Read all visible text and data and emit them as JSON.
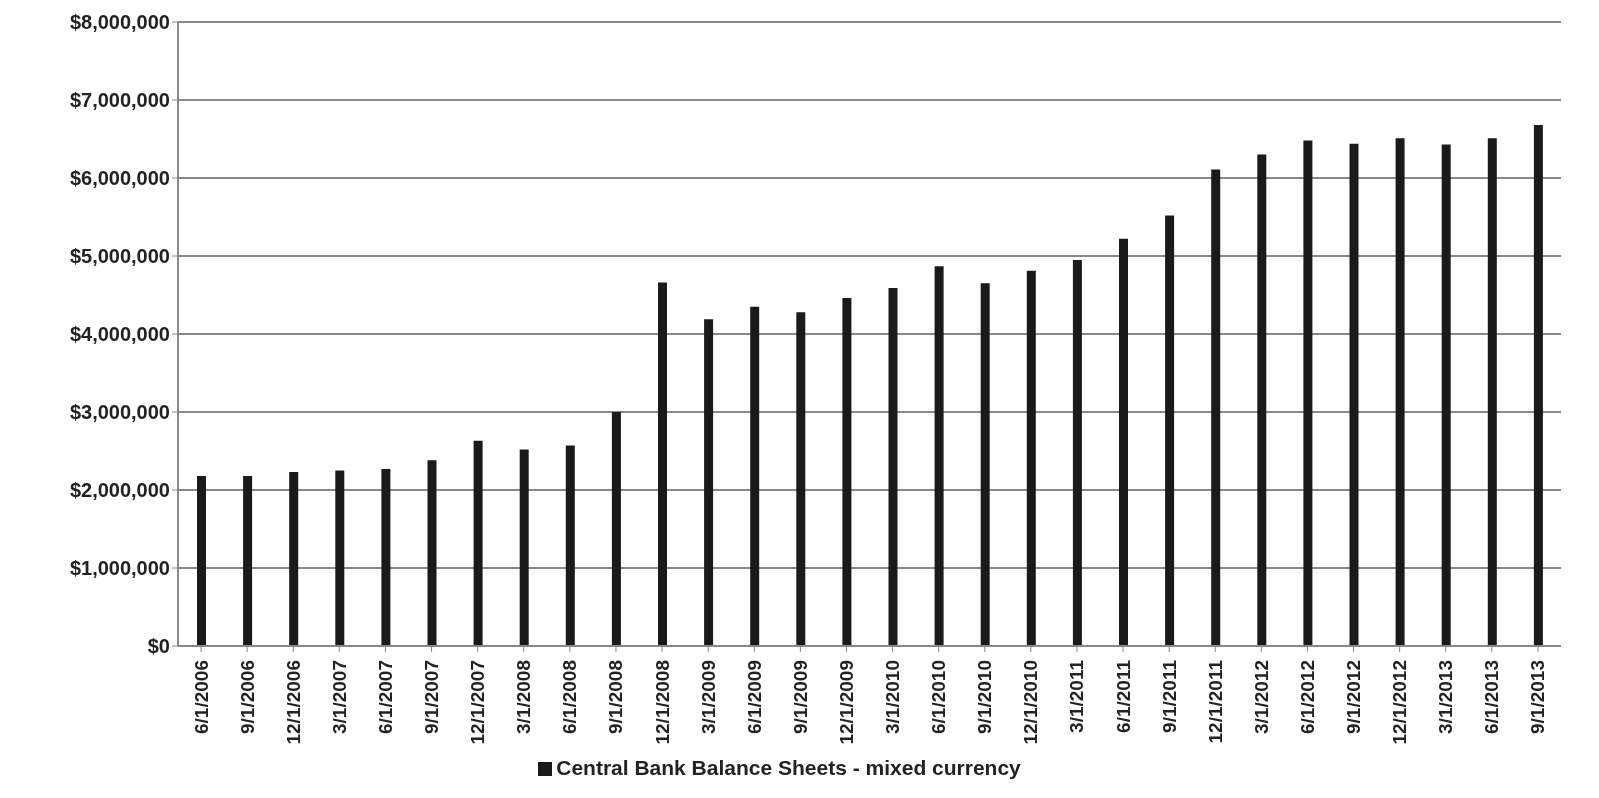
{
  "chart_data": {
    "type": "bar",
    "categories": [
      "6/1/2006",
      "9/1/2006",
      "12/1/2006",
      "3/1/2007",
      "6/1/2007",
      "9/1/2007",
      "12/1/2007",
      "3/1/2008",
      "6/1/2008",
      "9/1/2008",
      "12/1/2008",
      "3/1/2009",
      "6/1/2009",
      "9/1/2009",
      "12/1/2009",
      "3/1/2010",
      "6/1/2010",
      "9/1/2010",
      "12/1/2010",
      "3/1/2011",
      "6/1/2011",
      "9/1/2011",
      "12/1/2011",
      "3/1/2012",
      "6/1/2012",
      "9/1/2012",
      "12/1/2012",
      "3/1/2013",
      "6/1/2013",
      "9/1/2013"
    ],
    "series": [
      {
        "name": "Central Bank Balance Sheets - mixed currency",
        "color": "#1a1a1a",
        "values": [
          2180000,
          2180000,
          2230000,
          2250000,
          2270000,
          2380000,
          2630000,
          2520000,
          2570000,
          3000000,
          4660000,
          4190000,
          4350000,
          4280000,
          4460000,
          4590000,
          4870000,
          4650000,
          4810000,
          4950000,
          5220000,
          5520000,
          6110000,
          6300000,
          6480000,
          6440000,
          6510000,
          6430000,
          6510000,
          6680000
        ]
      }
    ],
    "ylim": [
      0,
      8000000
    ],
    "yticks": [
      {
        "value": 0,
        "label": "$0"
      },
      {
        "value": 1000000,
        "label": "$1,000,000"
      },
      {
        "value": 2000000,
        "label": "$2,000,000"
      },
      {
        "value": 3000000,
        "label": "$3,000,000"
      },
      {
        "value": 4000000,
        "label": "$4,000,000"
      },
      {
        "value": 5000000,
        "label": "$5,000,000"
      },
      {
        "value": 6000000,
        "label": "$6,000,000"
      },
      {
        "value": 7000000,
        "label": "$7,000,000"
      },
      {
        "value": 8000000,
        "label": "$8,000,000"
      }
    ],
    "grid": "y",
    "legend": "bottom"
  }
}
